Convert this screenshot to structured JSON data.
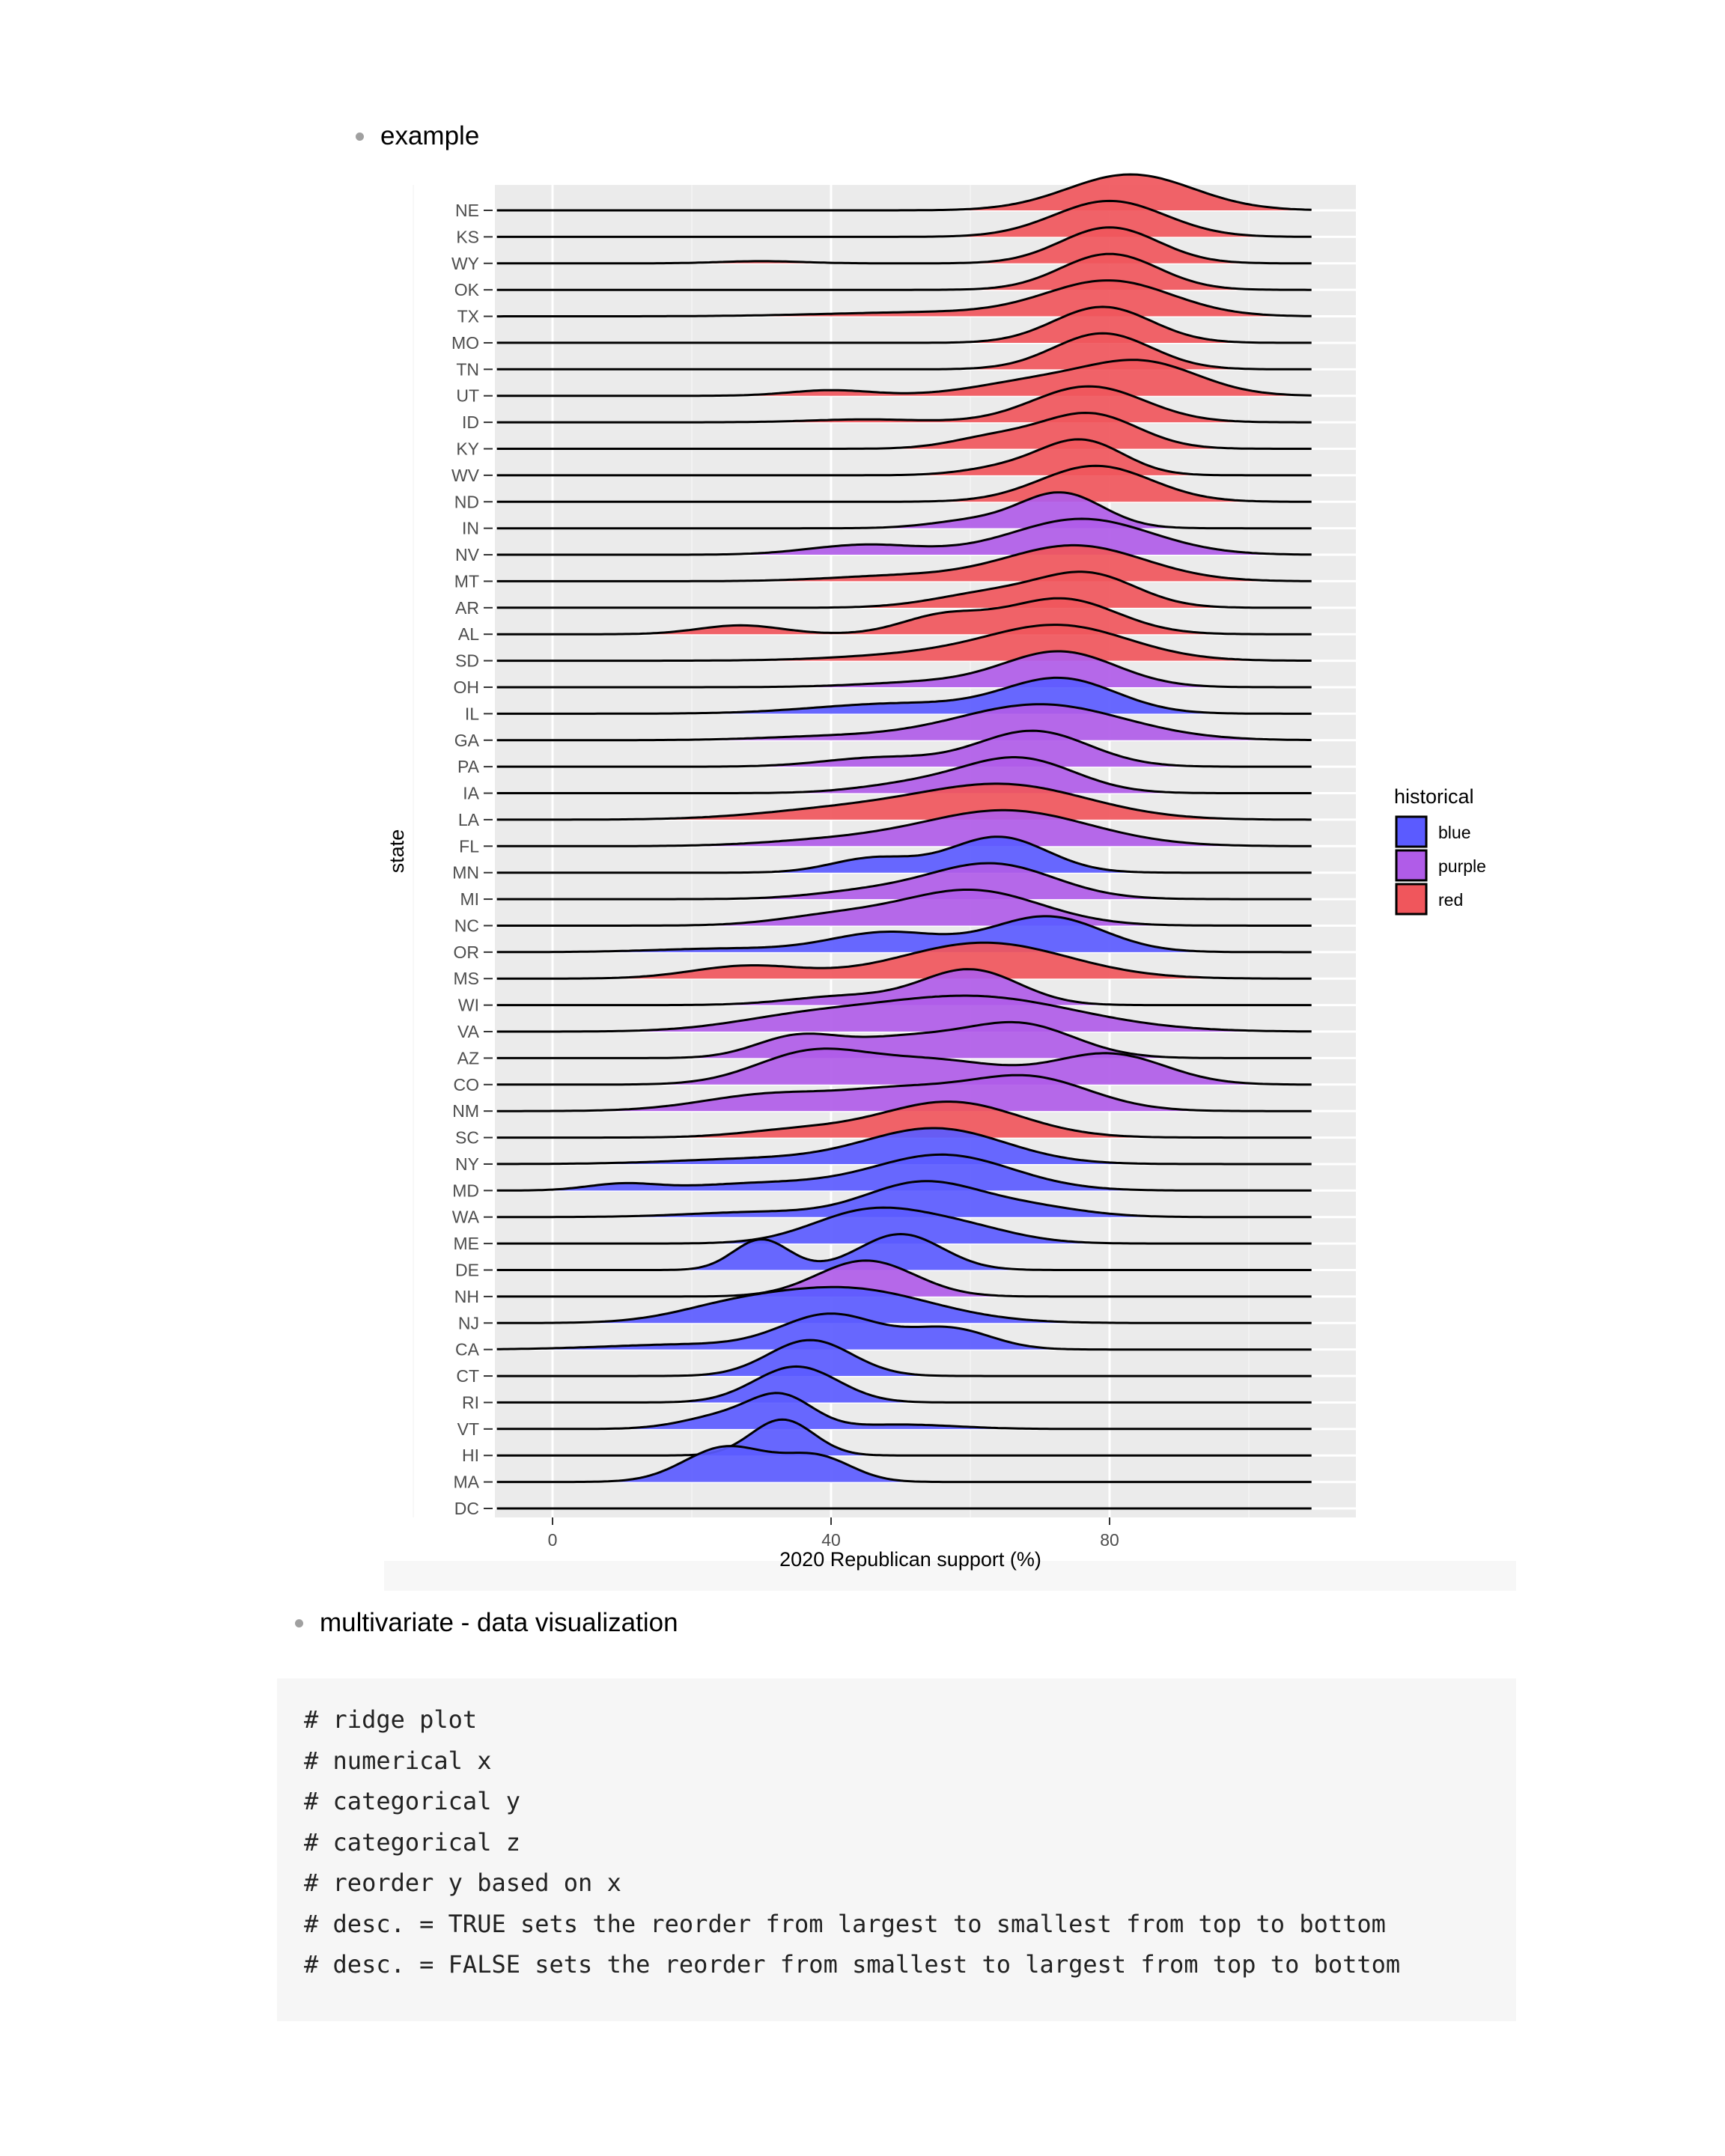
{
  "bullets": {
    "example": "example",
    "section": "multivariate - data visualization"
  },
  "chart_data": {
    "type": "ridgeline",
    "xlabel": "2020 Republican support (%)",
    "ylabel": "state",
    "xticks": [
      0,
      40,
      80
    ],
    "xlim": [
      -13,
      116
    ],
    "grid": true,
    "legend": {
      "title": "historical",
      "placement": "right",
      "entries": [
        {
          "name": "blue",
          "color": "#5B5BFF"
        },
        {
          "name": "purple",
          "color": "#B05CE8"
        },
        {
          "name": "red",
          "color": "#F0565C"
        }
      ]
    },
    "states": [
      {
        "state": "NE",
        "group": "red",
        "peaks": [
          [
            83,
            9,
            1
          ]
        ]
      },
      {
        "state": "KS",
        "group": "red",
        "peaks": [
          [
            80,
            8,
            1
          ]
        ]
      },
      {
        "state": "WY",
        "group": "red",
        "peaks": [
          [
            80,
            7,
            1
          ],
          [
            30,
            6,
            0.06
          ]
        ]
      },
      {
        "state": "OK",
        "group": "red",
        "peaks": [
          [
            80,
            7,
            1
          ]
        ]
      },
      {
        "state": "TX",
        "group": "red",
        "peaks": [
          [
            80,
            9,
            1
          ],
          [
            55,
            15,
            0.12
          ]
        ]
      },
      {
        "state": "MO",
        "group": "red",
        "peaks": [
          [
            79,
            7,
            1
          ]
        ]
      },
      {
        "state": "TN",
        "group": "red",
        "peaks": [
          [
            79,
            7,
            1
          ]
        ]
      },
      {
        "state": "UT",
        "group": "red",
        "peaks": [
          [
            85,
            8,
            0.85
          ],
          [
            70,
            9,
            0.4
          ],
          [
            40,
            6,
            0.15
          ]
        ]
      },
      {
        "state": "ID",
        "group": "red",
        "peaks": [
          [
            77,
            8,
            1
          ],
          [
            45,
            8,
            0.08
          ]
        ]
      },
      {
        "state": "KY",
        "group": "red",
        "peaks": [
          [
            77,
            7,
            1
          ],
          [
            63,
            6,
            0.3
          ]
        ]
      },
      {
        "state": "WV",
        "group": "red",
        "peaks": [
          [
            76,
            6,
            1
          ],
          [
            65,
            6,
            0.2
          ]
        ]
      },
      {
        "state": "ND",
        "group": "red",
        "peaks": [
          [
            78,
            8,
            1
          ]
        ]
      },
      {
        "state": "IN",
        "group": "purple",
        "peaks": [
          [
            73,
            6,
            1
          ],
          [
            60,
            6,
            0.2
          ]
        ]
      },
      {
        "state": "NV",
        "group": "purple",
        "peaks": [
          [
            76,
            10,
            0.9
          ],
          [
            45,
            8,
            0.25
          ]
        ]
      },
      {
        "state": "MT",
        "group": "red",
        "peaks": [
          [
            75,
            10,
            1
          ],
          [
            50,
            10,
            0.15
          ]
        ]
      },
      {
        "state": "AR",
        "group": "red",
        "peaks": [
          [
            77,
            7,
            1
          ],
          [
            63,
            8,
            0.45
          ]
        ]
      },
      {
        "state": "AL",
        "group": "red",
        "peaks": [
          [
            73,
            8,
            1
          ],
          [
            56,
            6,
            0.5
          ],
          [
            27,
            6,
            0.25
          ]
        ]
      },
      {
        "state": "SD",
        "group": "red",
        "peaks": [
          [
            73,
            10,
            1
          ],
          [
            55,
            12,
            0.2
          ]
        ]
      },
      {
        "state": "OH",
        "group": "purple",
        "peaks": [
          [
            73,
            8,
            1
          ],
          [
            55,
            10,
            0.15
          ]
        ]
      },
      {
        "state": "IL",
        "group": "blue",
        "peaks": [
          [
            73,
            8,
            1
          ],
          [
            50,
            12,
            0.3
          ]
        ]
      },
      {
        "state": "GA",
        "group": "purple",
        "peaks": [
          [
            70,
            12,
            1
          ],
          [
            40,
            10,
            0.1
          ]
        ]
      },
      {
        "state": "PA",
        "group": "purple",
        "peaks": [
          [
            69,
            8,
            1
          ],
          [
            47,
            8,
            0.25
          ]
        ]
      },
      {
        "state": "IA",
        "group": "purple",
        "peaks": [
          [
            67,
            8,
            1
          ],
          [
            52,
            8,
            0.25
          ]
        ]
      },
      {
        "state": "LA",
        "group": "red",
        "peaks": [
          [
            65,
            12,
            1
          ],
          [
            42,
            12,
            0.3
          ]
        ]
      },
      {
        "state": "FL",
        "group": "purple",
        "peaks": [
          [
            65,
            12,
            1
          ],
          [
            40,
            10,
            0.15
          ]
        ]
      },
      {
        "state": "MN",
        "group": "blue",
        "peaks": [
          [
            64,
            7,
            1
          ],
          [
            46,
            6,
            0.4
          ]
        ]
      },
      {
        "state": "MI",
        "group": "purple",
        "peaks": [
          [
            63,
            9,
            1
          ],
          [
            45,
            8,
            0.2
          ]
        ]
      },
      {
        "state": "NC",
        "group": "purple",
        "peaks": [
          [
            60,
            10,
            1
          ],
          [
            40,
            8,
            0.25
          ]
        ]
      },
      {
        "state": "OR",
        "group": "blue",
        "peaks": [
          [
            71,
            8,
            1
          ],
          [
            48,
            8,
            0.55
          ],
          [
            25,
            10,
            0.1
          ]
        ]
      },
      {
        "state": "MS",
        "group": "red",
        "peaks": [
          [
            62,
            12,
            1
          ],
          [
            28,
            8,
            0.35
          ]
        ]
      },
      {
        "state": "WI",
        "group": "purple",
        "peaks": [
          [
            60,
            7,
            1
          ],
          [
            42,
            8,
            0.25
          ]
        ]
      },
      {
        "state": "VA",
        "group": "purple",
        "peaks": [
          [
            60,
            15,
            1
          ],
          [
            35,
            10,
            0.3
          ]
        ]
      },
      {
        "state": "AZ",
        "group": "purple",
        "peaks": [
          [
            67,
            8,
            0.9
          ],
          [
            35,
            6,
            0.55
          ],
          [
            50,
            8,
            0.5
          ]
        ]
      },
      {
        "state": "CO",
        "group": "purple",
        "peaks": [
          [
            80,
            8,
            0.9
          ],
          [
            37,
            8,
            0.9
          ],
          [
            55,
            10,
            0.7
          ]
        ]
      },
      {
        "state": "NM",
        "group": "purple",
        "peaks": [
          [
            68,
            9,
            1
          ],
          [
            32,
            10,
            0.5
          ],
          [
            50,
            8,
            0.5
          ]
        ]
      },
      {
        "state": "SC",
        "group": "red",
        "peaks": [
          [
            57,
            10,
            1
          ],
          [
            35,
            8,
            0.2
          ]
        ]
      },
      {
        "state": "NY",
        "group": "blue",
        "peaks": [
          [
            55,
            10,
            1
          ],
          [
            30,
            12,
            0.15
          ]
        ]
      },
      {
        "state": "MD",
        "group": "blue",
        "peaks": [
          [
            56,
            10,
            1
          ],
          [
            10,
            5,
            0.18
          ],
          [
            30,
            10,
            0.2
          ]
        ]
      },
      {
        "state": "WA",
        "group": "blue",
        "peaks": [
          [
            53,
            8,
            1
          ],
          [
            68,
            8,
            0.3
          ],
          [
            30,
            10,
            0.15
          ]
        ]
      },
      {
        "state": "ME",
        "group": "blue",
        "peaks": [
          [
            45,
            8,
            1
          ],
          [
            58,
            8,
            0.55
          ]
        ]
      },
      {
        "state": "DE",
        "group": "blue",
        "peaks": [
          [
            50,
            6,
            1
          ],
          [
            30,
            4,
            0.85
          ]
        ]
      },
      {
        "state": "NH",
        "group": "purple",
        "peaks": [
          [
            45,
            7,
            1
          ]
        ]
      },
      {
        "state": "NJ",
        "group": "blue",
        "peaks": [
          [
            42,
            12,
            1
          ],
          [
            25,
            8,
            0.3
          ]
        ]
      },
      {
        "state": "CA",
        "group": "blue",
        "peaks": [
          [
            40,
            7,
            1
          ],
          [
            57,
            6,
            0.6
          ],
          [
            20,
            12,
            0.15
          ]
        ]
      },
      {
        "state": "CT",
        "group": "blue",
        "peaks": [
          [
            37,
            6,
            1
          ]
        ]
      },
      {
        "state": "RI",
        "group": "blue",
        "peaks": [
          [
            35,
            6,
            1
          ]
        ]
      },
      {
        "state": "VT",
        "group": "blue",
        "peaks": [
          [
            33,
            4.5,
            1
          ],
          [
            25,
            6,
            0.45
          ],
          [
            50,
            8,
            0.15
          ]
        ]
      },
      {
        "state": "HI",
        "group": "blue",
        "peaks": [
          [
            33,
            4.5,
            1
          ]
        ]
      },
      {
        "state": "MA",
        "group": "blue",
        "peaks": [
          [
            25,
            6,
            1
          ],
          [
            38,
            5,
            0.7
          ]
        ]
      },
      {
        "state": "DC",
        "group": "blue",
        "peaks": [
          [
            5,
            2,
            0.0
          ]
        ]
      }
    ]
  },
  "code": {
    "lines": [
      "# ridge plot",
      "# numerical x",
      "# categorical y",
      "# categorical z",
      "# reorder y based on x",
      "# desc. = TRUE sets the reorder from largest to smallest from top to bottom",
      "# desc. = FALSE sets the reorder from smallest to largest from top to bottom"
    ]
  }
}
